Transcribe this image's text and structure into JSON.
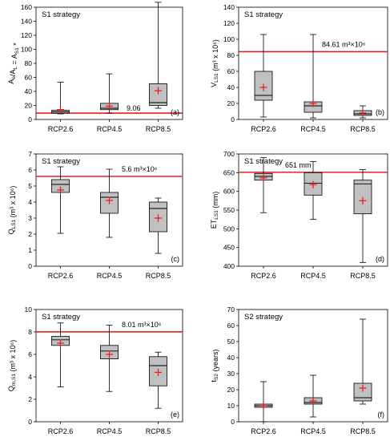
{
  "chart_data": [
    {
      "type": "box",
      "panel_label": "S1 strategy",
      "corner_label": "(a)",
      "ylabel": "A_e/A_L = A_S1 *",
      "ylim": [
        0,
        160
      ],
      "yticks": [
        0,
        20,
        40,
        60,
        80,
        100,
        120,
        140,
        160
      ],
      "categories": [
        "RCP2.6",
        "RCP4.5",
        "RCP8.5"
      ],
      "boxes": [
        {
          "min": 8,
          "q1": 9,
          "median": 11,
          "q3": 13,
          "max": 53,
          "mean": 14
        },
        {
          "min": 9,
          "q1": 14,
          "median": 16,
          "q3": 23,
          "max": 65,
          "mean": 19
        },
        {
          "min": 16,
          "q1": 20,
          "median": 24,
          "q3": 51,
          "max": 167,
          "mean": 41
        }
      ],
      "ref_value": 9.06,
      "ref_label": "9.06",
      "legend": "none",
      "grid": false
    },
    {
      "type": "box",
      "panel_label": "S1 strategy",
      "corner_label": "(b)",
      "ylabel": "V_LS1 (m³ x 10⁶)",
      "ylim": [
        0,
        140
      ],
      "yticks": [
        0,
        20,
        40,
        60,
        80,
        100,
        120,
        140
      ],
      "categories": [
        "RCP2.6",
        "RCP4.5",
        "RCP8.5"
      ],
      "boxes": [
        {
          "min": 3,
          "q1": 24,
          "median": 30,
          "q3": 60,
          "max": 106,
          "mean": 40
        },
        {
          "min": 2,
          "q1": 9,
          "median": 17,
          "q3": 22,
          "max": 106,
          "mean": 20
        },
        {
          "min": 2,
          "q1": 5,
          "median": 7,
          "q3": 11,
          "max": 17,
          "mean": 8
        }
      ],
      "ref_value": 84.61,
      "ref_label": "84.61 m³×10⁶",
      "legend": "none",
      "grid": false
    },
    {
      "type": "box",
      "panel_label": "S1 strategy",
      "corner_label": "(c)",
      "ylabel": "Q_LS1 (m³ x 10⁶)",
      "ylim": [
        0,
        7
      ],
      "yticks": [
        0,
        1,
        2,
        3,
        4,
        5,
        6,
        7
      ],
      "categories": [
        "RCP2.6",
        "RCP4.5",
        "RCP8.5"
      ],
      "boxes": [
        {
          "min": 2.05,
          "q1": 4.6,
          "median": 5.1,
          "q3": 5.4,
          "max": 6.2,
          "mean": 4.75
        },
        {
          "min": 1.8,
          "q1": 3.3,
          "median": 4.3,
          "q3": 4.6,
          "max": 6.05,
          "mean": 4.1
        },
        {
          "min": 0.8,
          "q1": 2.15,
          "median": 3.6,
          "q3": 4.0,
          "max": 4.25,
          "mean": 3.0
        }
      ],
      "ref_value": 5.6,
      "ref_label": "5.6 m³×10⁶",
      "legend": "none",
      "grid": false
    },
    {
      "type": "box",
      "panel_label": "S1 strategy",
      "corner_label": "(d)",
      "ylabel": "ET_LS1 (mm)",
      "ylim": [
        400,
        700
      ],
      "yticks": [
        400,
        450,
        500,
        550,
        600,
        650,
        700
      ],
      "categories": [
        "RCP2.6",
        "RCP4.5",
        "RCP8.5"
      ],
      "boxes": [
        {
          "min": 543,
          "q1": 630,
          "median": 640,
          "q3": 648,
          "max": 690,
          "mean": 636
        },
        {
          "min": 525,
          "q1": 590,
          "median": 622,
          "q3": 650,
          "max": 680,
          "mean": 618
        },
        {
          "min": 410,
          "q1": 540,
          "median": 620,
          "q3": 630,
          "max": 658,
          "mean": 575
        }
      ],
      "ref_value": 651,
      "ref_label": "651 mm",
      "legend": "none",
      "grid": false
    },
    {
      "type": "box",
      "panel_label": "S1 strategy",
      "corner_label": "(e)",
      "ylabel": "Q_m,S1 (m³ x 10⁶)",
      "ylim": [
        0,
        10
      ],
      "yticks": [
        0,
        2,
        4,
        6,
        8,
        10
      ],
      "categories": [
        "RCP2.6",
        "RCP4.5",
        "RCP8.5"
      ],
      "boxes": [
        {
          "min": 3.1,
          "q1": 6.8,
          "median": 7.3,
          "q3": 7.6,
          "max": 8.8,
          "mean": 7.0
        },
        {
          "min": 2.7,
          "q1": 5.6,
          "median": 6.3,
          "q3": 6.8,
          "max": 8.6,
          "mean": 6.0
        },
        {
          "min": 1.2,
          "q1": 3.2,
          "median": 5.0,
          "q3": 5.8,
          "max": 6.2,
          "mean": 4.4
        }
      ],
      "ref_value": 8.01,
      "ref_label": "8.01 m³×10⁶",
      "legend": "none",
      "grid": false
    },
    {
      "type": "box",
      "panel_label": "S2 strategy",
      "corner_label": "(f)",
      "ylabel": "t_S2 (years)",
      "ylim": [
        0,
        70
      ],
      "yticks": [
        0,
        10,
        20,
        30,
        40,
        50,
        60,
        70
      ],
      "categories": [
        "RCP2.6",
        "RCP4.5",
        "RCP8.5"
      ],
      "boxes": [
        {
          "min": 0,
          "q1": 9,
          "median": 10,
          "q3": 11,
          "max": 25,
          "mean": 10
        },
        {
          "min": 3,
          "q1": 11,
          "median": 12,
          "q3": 15,
          "max": 29,
          "mean": 13
        },
        {
          "min": 11,
          "q1": 13,
          "median": 15,
          "q3": 24,
          "max": 64,
          "mean": 21
        }
      ],
      "ref_value": null,
      "ref_label": "",
      "legend": "none",
      "grid": false
    }
  ],
  "colors": {
    "box_fill": "#c0c0c0",
    "ref_line": "#e8201c",
    "mean_marker": "#e8201c",
    "axes": "#000000"
  }
}
